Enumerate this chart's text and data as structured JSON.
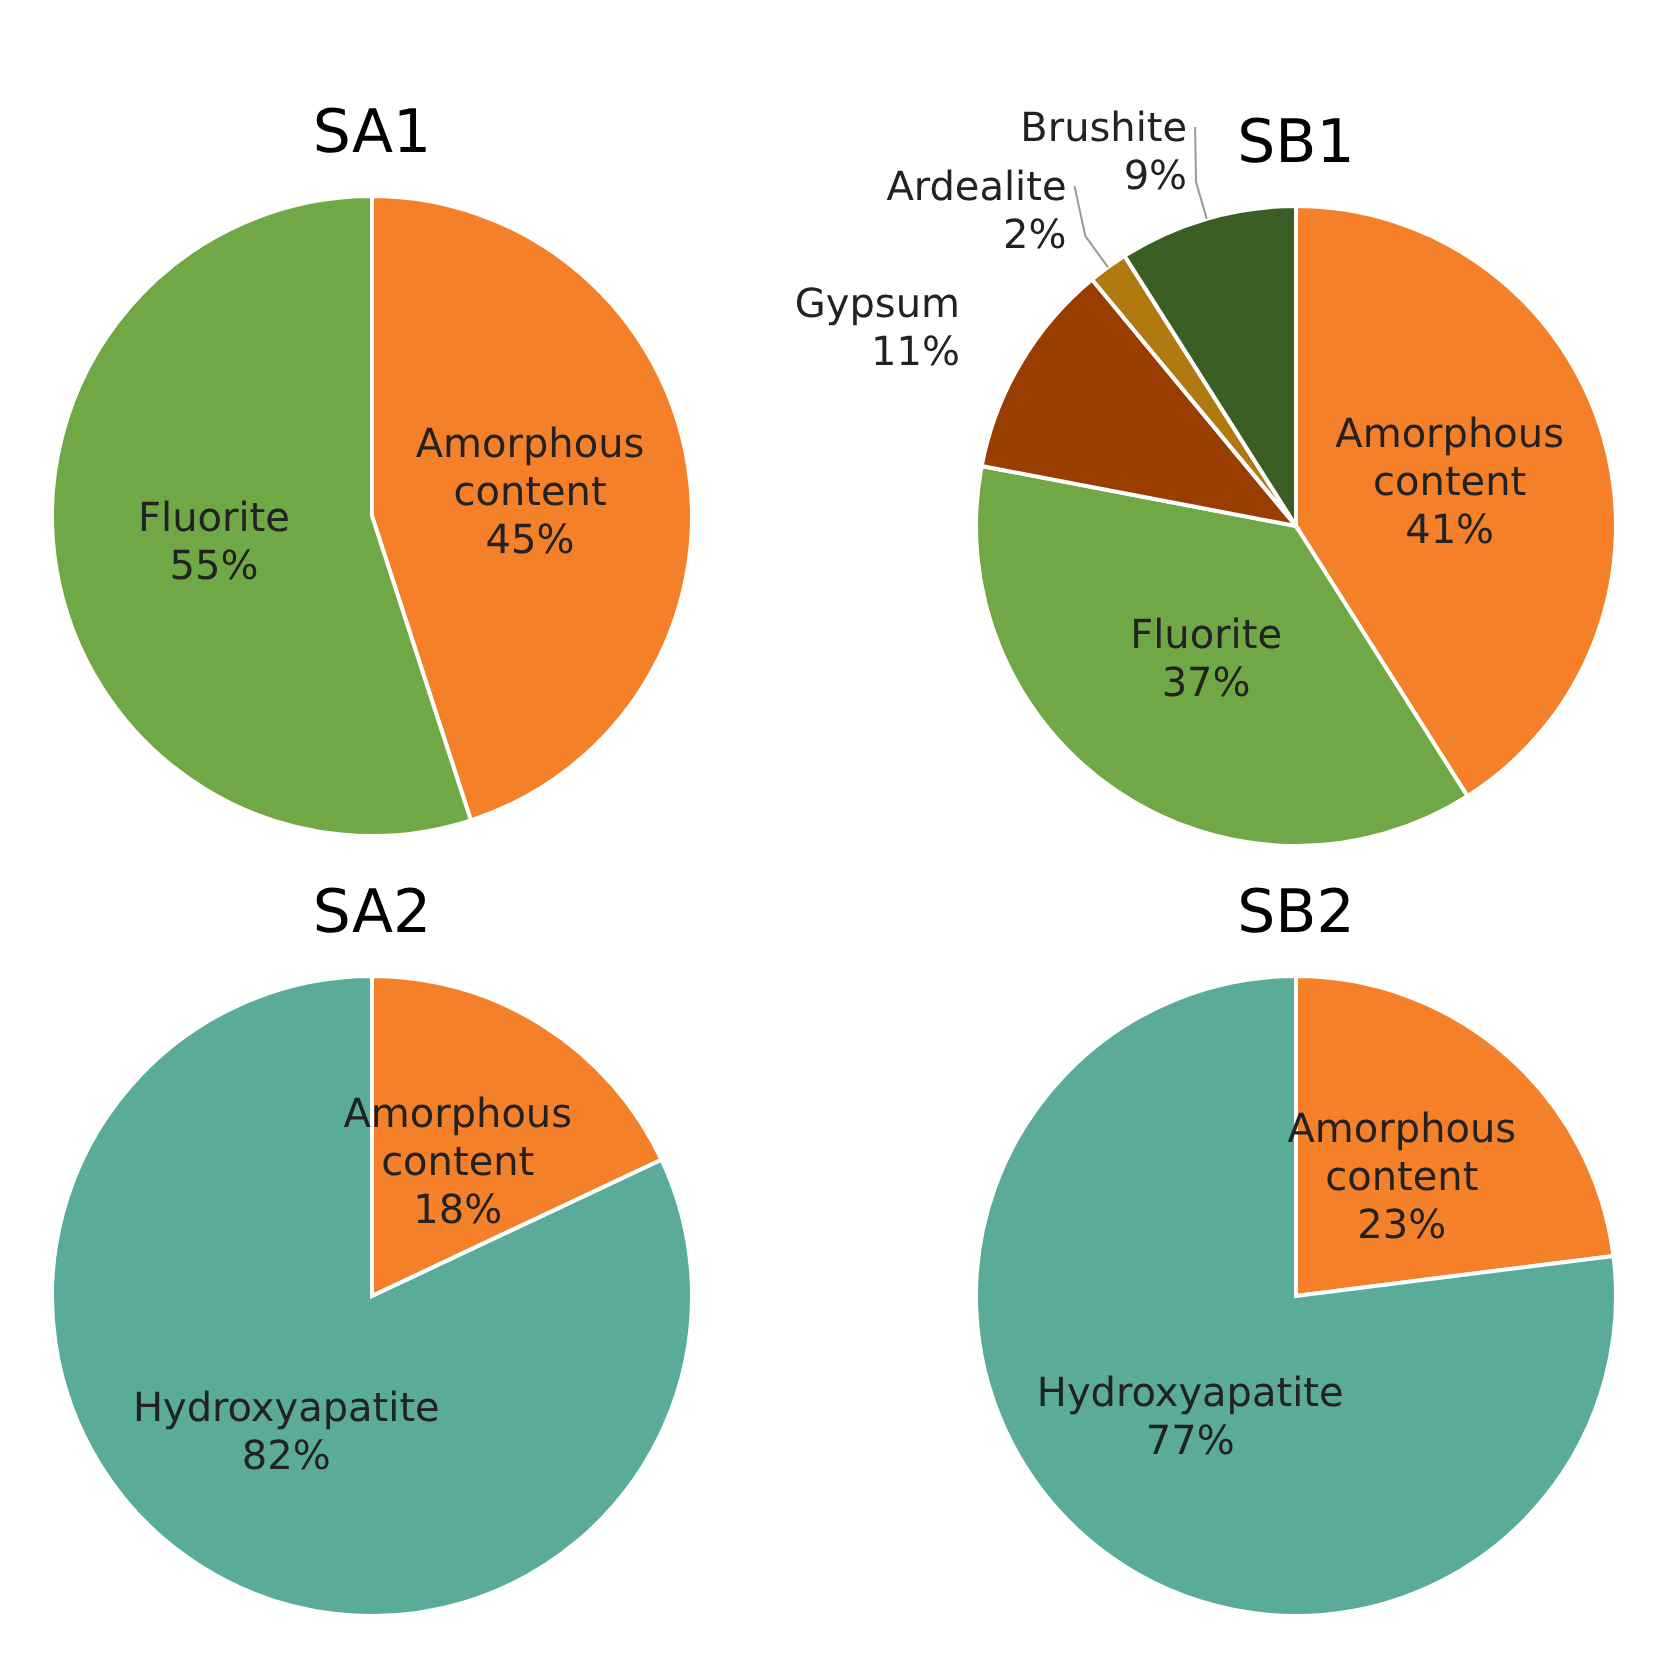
{
  "chart_data": [
    {
      "type": "pie",
      "title": "SA1",
      "categories": [
        "Amorphous content",
        "Fluorite"
      ],
      "values": [
        45,
        55
      ],
      "value_labels": [
        "45%",
        "55%"
      ],
      "colors": [
        "#f4812a",
        "#70a845"
      ]
    },
    {
      "type": "pie",
      "title": "SB1",
      "categories": [
        "Amorphous content",
        "Fluorite",
        "Gypsum",
        "Ardealite",
        "Brushite"
      ],
      "values": [
        41,
        37,
        11,
        2,
        9
      ],
      "value_labels": [
        "41%",
        "37%",
        "11%",
        "2%",
        "9%"
      ],
      "colors": [
        "#f4812a",
        "#70a845",
        "#993d00",
        "#b07a10",
        "#3a5e24"
      ]
    },
    {
      "type": "pie",
      "title": "SA2",
      "categories": [
        "Amorphous content",
        "Hydroxyapatite"
      ],
      "values": [
        18,
        82
      ],
      "value_labels": [
        "18%",
        "82%"
      ],
      "colors": [
        "#f4812a",
        "#5aab9a"
      ]
    },
    {
      "type": "pie",
      "title": "SB2",
      "categories": [
        "Amorphous content",
        "Hydroxyapatite"
      ],
      "values": [
        23,
        77
      ],
      "value_labels": [
        "23%",
        "77%"
      ],
      "colors": [
        "#f4812a",
        "#5aab9a"
      ]
    }
  ]
}
